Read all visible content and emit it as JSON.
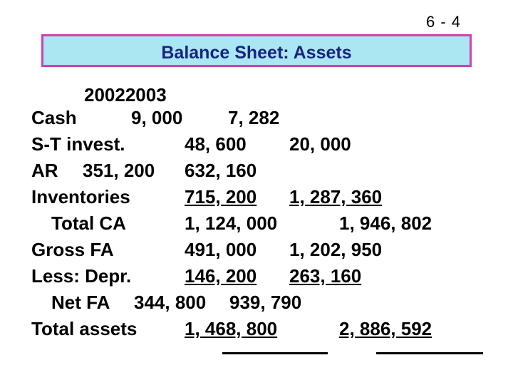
{
  "slide_number": "6 - 4",
  "title": "Balance Sheet: Assets",
  "years": "20022003",
  "rows": [
    {
      "label": "Cash",
      "v2002": "9, 000",
      "v2003": "7, 282"
    },
    {
      "label": "S-T invest.",
      "v2002": "48, 600",
      "v2003": "20, 000"
    },
    {
      "label": "AR",
      "v2002": "351, 200",
      "v2003": "632, 160"
    },
    {
      "label": "Inventories",
      "v2002": "715, 200",
      "v2003": "1, 287, 360"
    },
    {
      "label": "Total CA",
      "v2002": "1, 124, 000",
      "v2003": "1, 946, 802"
    },
    {
      "label": "Gross FA",
      "v2002": "491, 000",
      "v2003": "1, 202, 950"
    },
    {
      "label": "Less: Depr.",
      "v2002": "146, 200",
      "v2003": "263, 160"
    },
    {
      "label": "Net FA",
      "v2002": "344, 800",
      "v2003": "939, 790"
    },
    {
      "label": "Total assets",
      "v2002": "1, 468, 800",
      "v2003": "2, 886, 592"
    }
  ],
  "colors": {
    "title_fill": "#a9e7f3",
    "title_border": "#d23fb0",
    "title_text": "#1a237e"
  }
}
